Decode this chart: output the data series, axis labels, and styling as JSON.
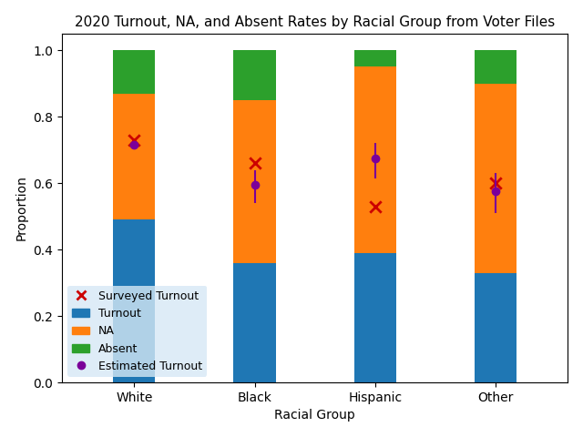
{
  "title": "2020 Turnout, NA, and Absent Rates by Racial Group from Voter Files",
  "xlabel": "Racial Group",
  "ylabel": "Proportion",
  "categories": [
    "White",
    "Black",
    "Hispanic",
    "Other"
  ],
  "turnout": [
    0.49,
    0.36,
    0.39,
    0.33
  ],
  "na": [
    0.38,
    0.49,
    0.56,
    0.57
  ],
  "absent": [
    0.13,
    0.15,
    0.05,
    0.1
  ],
  "surveyed_turnout": [
    0.73,
    0.66,
    0.53,
    0.6
  ],
  "estimated_turnout": [
    0.715,
    0.595,
    0.675,
    0.575
  ],
  "estimated_turnout_low": [
    0.71,
    0.54,
    0.615,
    0.51
  ],
  "estimated_turnout_high": [
    0.72,
    0.64,
    0.72,
    0.63
  ],
  "bar_colors": [
    "#1f77b4",
    "#ff7f0e",
    "#2ca02c"
  ],
  "surveyed_color": "#cc0000",
  "estimated_color": "#7b0099",
  "bar_width": 0.35,
  "title_fontsize": 11,
  "label_fontsize": 10,
  "tick_fontsize": 10,
  "legend_fontsize": 9
}
